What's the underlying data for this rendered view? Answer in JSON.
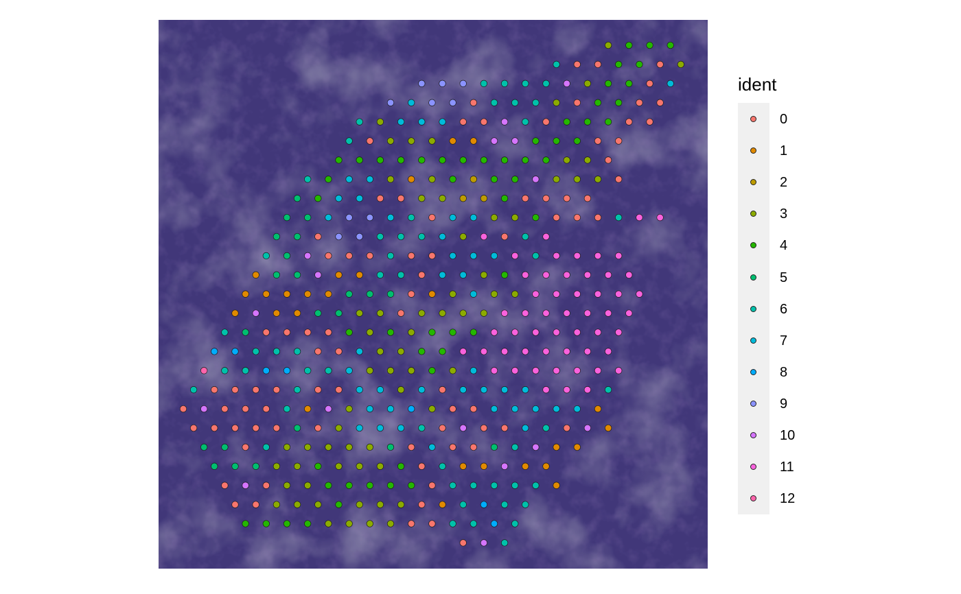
{
  "chart_data": {
    "type": "scatter",
    "title": "",
    "xlabel": "",
    "ylabel": "",
    "background": "tissue H&E image (purple)",
    "grid": false,
    "legend": {
      "title": "ident",
      "placement": "right",
      "levels": [
        "0",
        "1",
        "2",
        "3",
        "4",
        "5",
        "6",
        "7",
        "8",
        "9",
        "10",
        "11",
        "12"
      ],
      "colors": [
        "#F8766D",
        "#E18A00",
        "#BE9C00",
        "#8CAB00",
        "#24B700",
        "#00BE70",
        "#00C1AB",
        "#00BBDA",
        "#00ACFC",
        "#8B93FF",
        "#D575FE",
        "#F962DD",
        "#FF65AC"
      ]
    },
    "grid_spacing": {
      "col": 15.1,
      "row": 28
    },
    "grid_origin": {
      "col": 0,
      "row": 0
    },
    "rows": [
      {
        "row": 0,
        "start": 41,
        "idents": [
          "3",
          "4",
          "4",
          "4"
        ]
      },
      {
        "row": 1,
        "start": 36,
        "idents": [
          "6",
          "0",
          "0",
          "4",
          "4",
          "0",
          "3"
        ]
      },
      {
        "row": 2,
        "start": 23,
        "idents": [
          "9",
          "9",
          "9",
          "6",
          "6",
          "6",
          "6",
          "10",
          "3",
          "4",
          "4",
          "0",
          "7"
        ]
      },
      {
        "row": 3,
        "start": 20,
        "idents": [
          "9",
          "7",
          "9",
          "9",
          "0",
          "6",
          "6",
          "6",
          "3",
          "0",
          "4",
          "4",
          "0",
          "0"
        ]
      },
      {
        "row": 4,
        "start": 17,
        "idents": [
          "6",
          "3",
          "7",
          "7",
          "7",
          "0",
          "0",
          "10",
          "6",
          "0",
          "4",
          "4",
          "4",
          "0",
          "0"
        ]
      },
      {
        "row": 5,
        "start": 16,
        "idents": [
          "6",
          "0",
          "3",
          "3",
          "3",
          "1",
          "1",
          "10",
          "10",
          "4",
          "4",
          "4",
          "0",
          "0"
        ]
      },
      {
        "row": 6,
        "start": 15,
        "idents": [
          "4",
          "4",
          "4",
          "4",
          "4",
          "4",
          "4",
          "4",
          "4",
          "4",
          "4",
          "3",
          "3",
          "0"
        ]
      },
      {
        "row": 7,
        "start": 12,
        "idents": [
          "6",
          "4",
          "7",
          "7",
          "3",
          "1",
          "3",
          "4",
          "2",
          "4",
          "4",
          "10",
          "3",
          "3",
          "3",
          "0"
        ]
      },
      {
        "row": 8,
        "start": 11,
        "idents": [
          "5",
          "4",
          "7",
          "7",
          "0",
          "0",
          "3",
          "3",
          "2",
          "2",
          "4",
          "0",
          "0",
          "0",
          "0"
        ]
      },
      {
        "row": 9,
        "start": 10,
        "idents": [
          "5",
          "5",
          "7",
          "9",
          "9",
          "7",
          "6",
          "0",
          "7",
          "7",
          "3",
          "3",
          "4",
          "0",
          "0",
          "0",
          "6",
          "11",
          "11"
        ]
      },
      {
        "row": 10,
        "start": 9,
        "idents": [
          "5",
          "5",
          "0",
          "9",
          "9",
          "6",
          "6",
          "6",
          "7",
          "3",
          "11",
          "0",
          "6",
          "11"
        ]
      },
      {
        "row": 11,
        "start": 8,
        "idents": [
          "6",
          "5",
          "10",
          "0",
          "0",
          "0",
          "6",
          "0",
          "0",
          "7",
          "7",
          "7",
          "11",
          "6",
          "11",
          "11",
          "11",
          "11"
        ]
      },
      {
        "row": 12,
        "start": 7,
        "idents": [
          "1",
          "5",
          "5",
          "10",
          "1",
          "1",
          "6",
          "6",
          "0",
          "7",
          "7",
          "3",
          "4",
          "11",
          "11",
          "11",
          "11",
          "11",
          "11"
        ]
      },
      {
        "row": 13,
        "start": 6,
        "idents": [
          "1",
          "1",
          "1",
          "1",
          "1",
          "5",
          "5",
          "5",
          "0",
          "1",
          "3",
          "7",
          "3",
          "3",
          "11",
          "11",
          "11",
          "11",
          "11",
          "11"
        ]
      },
      {
        "row": 14,
        "start": 5,
        "idents": [
          "1",
          "10",
          "1",
          "1",
          "5",
          "5",
          "3",
          "3",
          "0",
          "3",
          "3",
          "3",
          "3",
          "11",
          "11",
          "11",
          "11",
          "11",
          "11",
          "11"
        ]
      },
      {
        "row": 15,
        "start": 4,
        "idents": [
          "6",
          "5",
          "0",
          "0",
          "0",
          "0",
          "4",
          "3",
          "4",
          "3",
          "4",
          "4",
          "4",
          "11",
          "11",
          "11",
          "11",
          "11",
          "11",
          "11"
        ]
      },
      {
        "row": 16,
        "start": 3,
        "idents": [
          "8",
          "8",
          "6",
          "6",
          "6",
          "0",
          "0",
          "7",
          "3",
          "3",
          "4",
          "4",
          "11",
          "11",
          "11",
          "11",
          "11",
          "11",
          "11",
          "11"
        ]
      },
      {
        "row": 17,
        "start": 2,
        "idents": [
          "12",
          "6",
          "6",
          "8",
          "8",
          "6",
          "6",
          "7",
          "3",
          "3",
          "3",
          "4",
          "3",
          "7",
          "11",
          "11",
          "11",
          "11",
          "11",
          "11",
          "11"
        ]
      },
      {
        "row": 18,
        "start": 1,
        "idents": [
          "6",
          "0",
          "0",
          "0",
          "0",
          "6",
          "0",
          "0",
          "7",
          "7",
          "3",
          "7",
          "0",
          "7",
          "7",
          "7",
          "7",
          "11",
          "11",
          "11",
          "6"
        ]
      },
      {
        "row": 19,
        "start": 0,
        "idents": [
          "0",
          "10",
          "0",
          "0",
          "0",
          "6",
          "1",
          "10",
          "3",
          "7",
          "7",
          "8",
          "3",
          "0",
          "0",
          "7",
          "7",
          "7",
          "7",
          "7",
          "1"
        ]
      },
      {
        "row": 20,
        "start": 1,
        "idents": [
          "0",
          "0",
          "0",
          "0",
          "0",
          "5",
          "0",
          "3",
          "7",
          "7",
          "7",
          "6",
          "0",
          "10",
          "0",
          "0",
          "7",
          "6",
          "0",
          "10",
          "1"
        ]
      },
      {
        "row": 21,
        "start": 2,
        "idents": [
          "5",
          "5",
          "0",
          "6",
          "3",
          "3",
          "3",
          "3",
          "3",
          "5",
          "0",
          "7",
          "0",
          "0",
          "5",
          "6",
          "10",
          "1",
          "1"
        ]
      },
      {
        "row": 22,
        "start": 3,
        "idents": [
          "5",
          "5",
          "5",
          "3",
          "3",
          "4",
          "3",
          "3",
          "3",
          "4",
          "0",
          "6",
          "1",
          "1",
          "10",
          "1",
          "1"
        ]
      },
      {
        "row": 23,
        "start": 4,
        "idents": [
          "0",
          "10",
          "0",
          "3",
          "3",
          "4",
          "4",
          "4",
          "4",
          "4",
          "0",
          "6",
          "6",
          "6",
          "6",
          "6",
          "1"
        ]
      },
      {
        "row": 24,
        "start": 5,
        "idents": [
          "0",
          "0",
          "3",
          "3",
          "3",
          "4",
          "3",
          "3",
          "3",
          "0",
          "1",
          "6",
          "8",
          "6",
          "6"
        ]
      },
      {
        "row": 25,
        "start": 6,
        "idents": [
          "4",
          "4",
          "4",
          "4",
          "3",
          "3",
          "3",
          "3",
          "0",
          "0",
          "6",
          "6",
          "8",
          "6"
        ]
      },
      {
        "row": 26,
        "start": 27,
        "idents": [
          "0",
          "10",
          "6"
        ]
      }
    ]
  }
}
